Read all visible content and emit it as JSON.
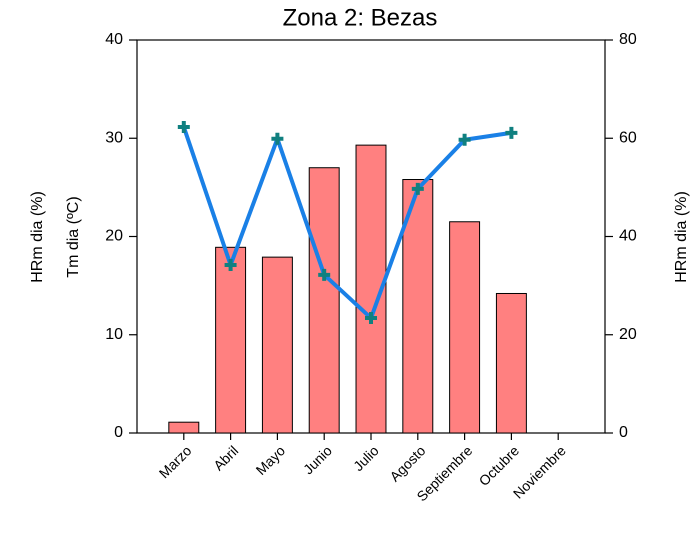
{
  "chart_data": {
    "type": "bar_line",
    "title": "Zona 2: Bezas",
    "y_labels": [
      "HRm dia (%)",
      "Tm  dia (ºC)"
    ],
    "y2_label": "HRm dia (%)",
    "categories": [
      "Marzo",
      "Abril",
      "Mayo",
      "Junio",
      "Julio",
      "Agosto",
      "Septiembre",
      "Octubre",
      "Noviembre"
    ],
    "series": [
      {
        "type": "bar",
        "color": "#ff8080",
        "values": [
          1.1,
          18.9,
          17.9,
          27,
          29.3,
          25.8,
          21.5,
          14.2,
          0
        ]
      },
      {
        "type": "line",
        "axis": "y2",
        "color": "#1a80e6",
        "marker_color": "#108080",
        "values": [
          62.3,
          34.2,
          59.9,
          32.2,
          23.4,
          49.7,
          59.7,
          61.1,
          null
        ]
      }
    ],
    "ylim": [
      0,
      40
    ],
    "yticks": [
      0,
      10,
      20,
      30,
      40
    ],
    "y2lim": [
      0,
      80
    ],
    "y2ticks": [
      0,
      20,
      40,
      60,
      80
    ]
  }
}
